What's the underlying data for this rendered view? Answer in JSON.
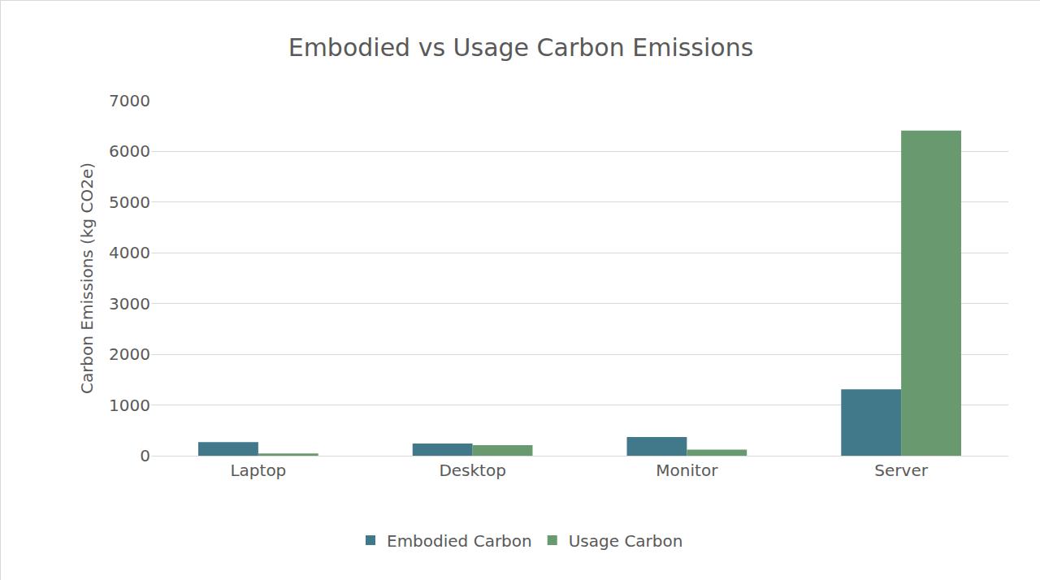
{
  "chart_data": {
    "type": "bar",
    "title": "Embodied vs Usage Carbon Emissions",
    "y_label": "Carbon Emissions (kg CO2e)",
    "categories": [
      "Laptop",
      "Desktop",
      "Monitor",
      "Server"
    ],
    "series": [
      {
        "name": "Embodied Carbon",
        "color": "#41788a",
        "values": [
          270,
          240,
          370,
          1310
        ]
      },
      {
        "name": "Usage Carbon",
        "color": "#69996f",
        "values": [
          45,
          210,
          120,
          6410
        ]
      }
    ],
    "ylim": [
      0,
      7000
    ],
    "yticks": [
      0,
      1000,
      2000,
      3000,
      4000,
      5000,
      6000,
      7000
    ],
    "grid": true,
    "legend": "bottom"
  }
}
